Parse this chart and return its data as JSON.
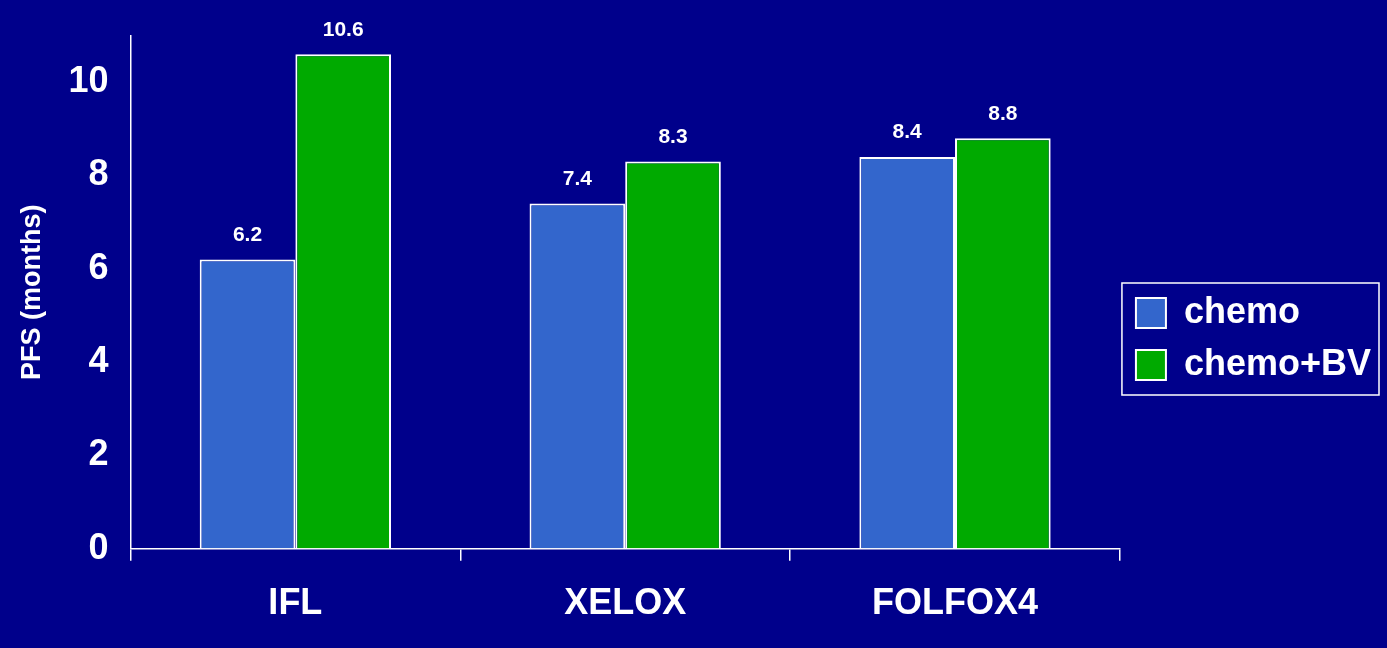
{
  "chart_data": {
    "type": "bar",
    "ylabel": "PFS (months)",
    "categories": [
      "IFL",
      "XELOX",
      "FOLFOX4"
    ],
    "series": [
      {
        "name": "chemo",
        "color": "#3366cc",
        "values": [
          6.2,
          7.4,
          8.4
        ]
      },
      {
        "name": "chemo+BV",
        "color": "#00aa00",
        "values": [
          10.6,
          8.3,
          8.8
        ]
      }
    ],
    "ylim": [
      0,
      11
    ],
    "yticks": [
      0,
      2,
      4,
      6,
      8,
      10
    ],
    "grid": false,
    "legend": "right",
    "data_labels": true
  }
}
